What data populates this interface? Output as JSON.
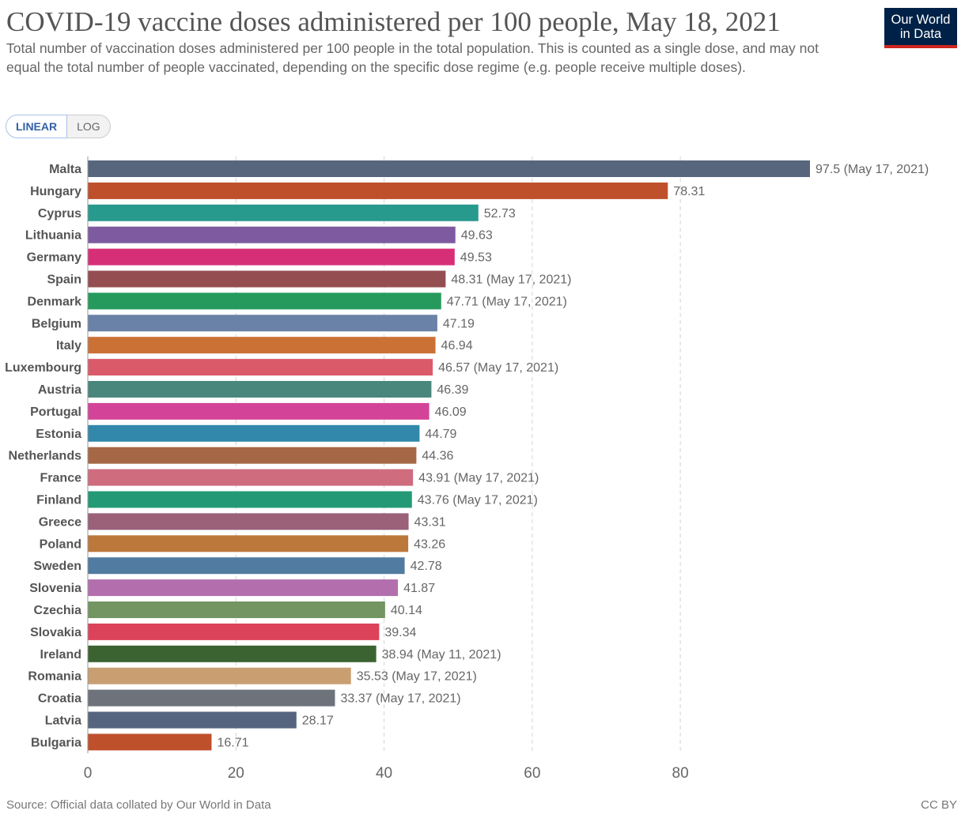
{
  "header": {
    "title": "COVID-19 vaccine doses administered per 100 people, May 18, 2021",
    "subtitle": "Total number of vaccination doses administered per 100 people in the total population. This is counted as a single dose, and may not equal the total number of people vaccinated, depending on the specific dose regime (e.g. people receive multiple doses).",
    "logo_line1": "Our World",
    "logo_line2": "in Data"
  },
  "controls": {
    "linear_label": "LINEAR",
    "log_label": "LOG"
  },
  "footer": {
    "source": "Source: Official data collated by Our World in Data",
    "license": "CC BY"
  },
  "chart_data": {
    "type": "bar",
    "orientation": "horizontal",
    "title": "COVID-19 vaccine doses administered per 100 people, May 18, 2021",
    "xlabel": "",
    "ylabel": "",
    "xlim": [
      0,
      97.5
    ],
    "xticks": [
      0,
      20,
      40,
      60,
      80
    ],
    "grid": true,
    "categories": [
      "Malta",
      "Hungary",
      "Cyprus",
      "Lithuania",
      "Germany",
      "Spain",
      "Denmark",
      "Belgium",
      "Italy",
      "Luxembourg",
      "Austria",
      "Portugal",
      "Estonia",
      "Netherlands",
      "France",
      "Finland",
      "Greece",
      "Poland",
      "Sweden",
      "Slovenia",
      "Czechia",
      "Slovakia",
      "Ireland",
      "Romania",
      "Croatia",
      "Latvia",
      "Bulgaria"
    ],
    "values": [
      97.5,
      78.31,
      52.73,
      49.63,
      49.53,
      48.31,
      47.71,
      47.19,
      46.94,
      46.57,
      46.39,
      46.09,
      44.79,
      44.36,
      43.91,
      43.76,
      43.31,
      43.26,
      42.78,
      41.87,
      40.14,
      39.34,
      38.94,
      35.53,
      33.37,
      28.17,
      16.71
    ],
    "value_labels": [
      "97.5 (May 17, 2021)",
      "78.31",
      "52.73",
      "49.63",
      "49.53",
      "48.31 (May 17, 2021)",
      "47.71 (May 17, 2021)",
      "47.19",
      "46.94",
      "46.57 (May 17, 2021)",
      "46.39",
      "46.09",
      "44.79",
      "44.36",
      "43.91 (May 17, 2021)",
      "43.76 (May 17, 2021)",
      "43.31",
      "43.26",
      "42.78",
      "41.87",
      "40.14",
      "39.34",
      "38.94 (May 11, 2021)",
      "35.53 (May 17, 2021)",
      "33.37 (May 17, 2021)",
      "28.17",
      "16.71"
    ],
    "colors": [
      "#58667d",
      "#bf502c",
      "#28998d",
      "#7e5ba0",
      "#d72f77",
      "#944e52",
      "#269a5c",
      "#6a81a8",
      "#cb7136",
      "#db5a69",
      "#49877c",
      "#d34498",
      "#3188ab",
      "#a56745",
      "#cf6c7e",
      "#239a75",
      "#9a6179",
      "#bc783a",
      "#517ba0",
      "#b36fad",
      "#739562",
      "#dc435b",
      "#3b6331",
      "#c99f72",
      "#6e737b",
      "#56657f",
      "#bf502c"
    ]
  }
}
